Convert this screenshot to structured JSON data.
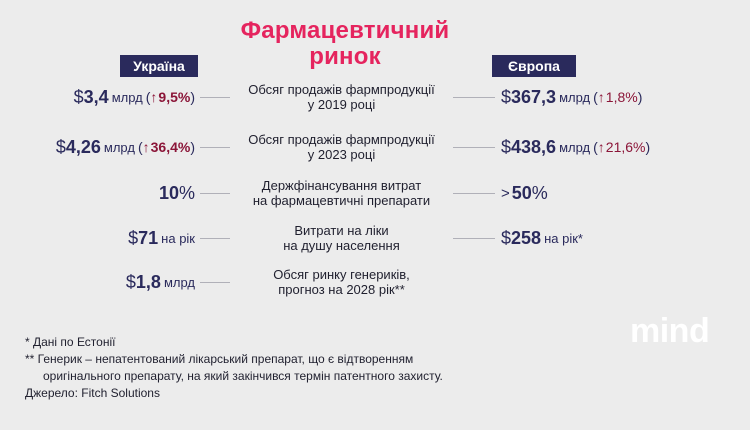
{
  "title_line1": "Фармацевтичний",
  "title_line2": "ринок",
  "left_header": "Україна",
  "right_header": "Європа",
  "rows": [
    {
      "center_line1": "Обсяг продажів фармпродукції",
      "center_line2": "у 2019 році",
      "left": {
        "value": "3,4",
        "unit": "млрд",
        "change": "9,5%"
      },
      "right": {
        "value": "367,3",
        "unit": "млрд",
        "change": "1,8%"
      }
    },
    {
      "center_line1": "Обсяг продажів фармпродукції",
      "center_line2": "у 2023 році",
      "left": {
        "value": "4,26",
        "unit": "млрд",
        "change": "36,4%"
      },
      "right": {
        "value": "438,6",
        "unit": "млрд",
        "change": "21,6%"
      }
    },
    {
      "center_line1": "Держфінансування витрат",
      "center_line2": "на фармацевтичні препарати",
      "left": {
        "value": "10",
        "suffix": "%"
      },
      "right": {
        "prefix": ">",
        "value": "50",
        "suffix": "%"
      }
    },
    {
      "center_line1": "Витрати на ліки",
      "center_line2": "на душу населення",
      "left": {
        "value": "71",
        "unit": "на рік"
      },
      "right": {
        "value": "258",
        "unit": "на рік*"
      }
    },
    {
      "center_line1": "Обсяг ринку генериків,",
      "center_line2": "прогноз на 2028 рік**",
      "left": {
        "value": "1,8",
        "unit": "млрд"
      }
    }
  ],
  "currency": "$",
  "arrow_glyph": "↑",
  "open_paren": "(",
  "close_paren": ")",
  "notes": {
    "n1": "*  Дані по Естонії",
    "n2a": "** Генерик – непатентований лікарський препарат, що є відтворенням",
    "n2b": "оригінального препарату, на який закінчився термін патентного захисту.",
    "source": "Джерело: Fitch Solutions"
  },
  "logo": "mind",
  "colors": {
    "accent": "#e5245e",
    "navy": "#2a2a5c",
    "change": "#8b1538"
  }
}
